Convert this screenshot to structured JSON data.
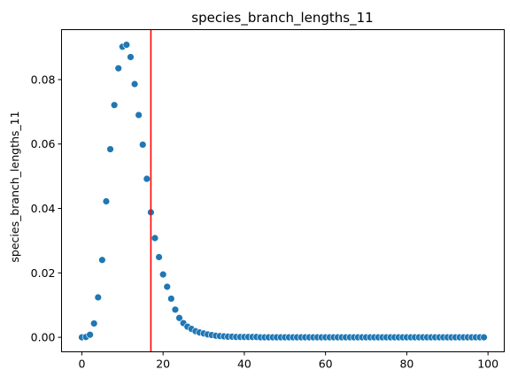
{
  "chart_data": {
    "type": "scatter",
    "title": "species_branch_lengths_11",
    "xlabel": "",
    "ylabel": "species_branch_lengths_11",
    "xlim": [
      -5,
      104
    ],
    "ylim": [
      -0.0045,
      0.0955
    ],
    "x_ticks": [
      0,
      20,
      40,
      60,
      80,
      100
    ],
    "x_tick_labels": [
      "0",
      "20",
      "40",
      "60",
      "80",
      "100"
    ],
    "y_ticks": [
      0.0,
      0.02,
      0.04,
      0.06,
      0.08
    ],
    "y_tick_labels": [
      "0.00",
      "0.02",
      "0.04",
      "0.06",
      "0.08"
    ],
    "grid": false,
    "marker_color": "#1f77b4",
    "vline": {
      "x": 17,
      "color": "#ff0000"
    },
    "x": [
      0,
      1,
      2,
      3,
      4,
      5,
      6,
      7,
      8,
      9,
      10,
      11,
      12,
      13,
      14,
      15,
      16,
      17,
      18,
      19,
      20,
      21,
      22,
      23,
      24,
      25,
      26,
      27,
      28,
      29,
      30,
      31,
      32,
      33,
      34,
      35,
      36,
      37,
      38,
      39,
      40,
      41,
      42,
      43,
      44,
      45,
      46,
      47,
      48,
      49,
      50,
      51,
      52,
      53,
      54,
      55,
      56,
      57,
      58,
      59,
      60,
      61,
      62,
      63,
      64,
      65,
      66,
      67,
      68,
      69,
      70,
      71,
      72,
      73,
      74,
      75,
      76,
      77,
      78,
      79,
      80,
      81,
      82,
      83,
      84,
      85,
      86,
      87,
      88,
      89,
      90,
      91,
      92,
      93,
      94,
      95,
      96,
      97,
      98,
      99
    ],
    "y": [
      0.0,
      0.0001,
      0.0008,
      0.0043,
      0.0124,
      0.024,
      0.0422,
      0.0584,
      0.0721,
      0.0835,
      0.0902,
      0.0908,
      0.087,
      0.0786,
      0.069,
      0.0598,
      0.0492,
      0.0388,
      0.0308,
      0.0249,
      0.0195,
      0.0157,
      0.012,
      0.0086,
      0.006,
      0.0044,
      0.0033,
      0.0026,
      0.0019,
      0.0015,
      0.0012,
      0.0009,
      0.0007,
      0.0005,
      0.0004,
      0.0003,
      0.0002,
      0.0002,
      0.0001,
      0.0001,
      0.0001,
      0.0001,
      0.0001,
      0.0001,
      0.0,
      0.0,
      0.0,
      0.0,
      0.0,
      0.0,
      0.0,
      0.0,
      0.0,
      0.0,
      0.0,
      0.0,
      0.0,
      0.0,
      0.0,
      0.0,
      0.0,
      0.0,
      0.0,
      0.0,
      0.0,
      0.0,
      0.0,
      0.0,
      0.0,
      0.0,
      0.0,
      0.0,
      0.0,
      0.0,
      0.0,
      0.0,
      0.0,
      0.0,
      0.0,
      0.0,
      0.0,
      0.0,
      0.0,
      0.0,
      0.0,
      0.0,
      0.0,
      0.0,
      0.0,
      0.0,
      0.0,
      0.0,
      0.0,
      0.0,
      0.0,
      0.0,
      0.0,
      0.0,
      0.0,
      0.0
    ]
  }
}
